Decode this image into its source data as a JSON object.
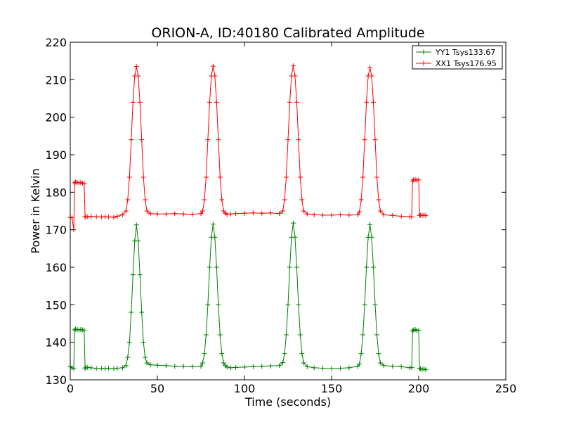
{
  "chart_data": {
    "type": "line",
    "title": "ORION-A, ID:40180 Calibrated Amplitude",
    "xlabel": "Time (seconds)",
    "ylabel": "Power in Kelvin",
    "xlim": [
      0,
      250
    ],
    "ylim": [
      130,
      220
    ],
    "xticks": [
      "0",
      "50",
      "100",
      "150",
      "200",
      "250"
    ],
    "yticks": [
      "130",
      "140",
      "150",
      "160",
      "170",
      "180",
      "190",
      "200",
      "210",
      "220"
    ],
    "grid": false,
    "legend_position": "top-right",
    "series": [
      {
        "name": "YY1 Tsys133.67",
        "color": "#008000",
        "marker": "+",
        "x": [
          0,
          1,
          2,
          2.5,
          3,
          4,
          5,
          6,
          7,
          8,
          8.5,
          9,
          10,
          12,
          15,
          18,
          20,
          22,
          25,
          27,
          30,
          32,
          33,
          34,
          35,
          36,
          37,
          38,
          39,
          40,
          41,
          42,
          43,
          44,
          46,
          50,
          55,
          60,
          65,
          70,
          75,
          76,
          77,
          78,
          79,
          80,
          81,
          82,
          83,
          84,
          85,
          86,
          87,
          88,
          89,
          90,
          92,
          95,
          100,
          105,
          110,
          115,
          120,
          122,
          123,
          124,
          125,
          126,
          127,
          128,
          129,
          130,
          131,
          132,
          133,
          134,
          136,
          140,
          145,
          150,
          155,
          160,
          165,
          166,
          167,
          168,
          169,
          170,
          171,
          172,
          173,
          174,
          175,
          176,
          177,
          178,
          180,
          185,
          190,
          195,
          196,
          196.5,
          197,
          198,
          199,
          200,
          200.5,
          201,
          202,
          203,
          204
        ],
        "values": [
          133.5,
          133.2,
          133.0,
          143.3,
          143.5,
          143.4,
          143.3,
          143.4,
          143.3,
          143.2,
          133.0,
          133.3,
          133.3,
          133.2,
          133.0,
          133.1,
          133.0,
          133.1,
          133.0,
          133.1,
          133.2,
          133.8,
          136,
          140,
          148,
          158,
          167,
          171.3,
          167,
          158,
          148,
          140,
          136,
          134.5,
          134.0,
          133.9,
          133.8,
          133.6,
          133.6,
          133.5,
          133.6,
          134.5,
          137,
          142,
          150,
          160,
          168,
          171.5,
          168,
          160,
          150,
          142,
          137,
          134.5,
          133.8,
          133.4,
          133.2,
          133.3,
          133.4,
          133.5,
          133.6,
          133.7,
          133.8,
          134.6,
          137,
          142,
          150,
          160,
          168,
          171.8,
          168,
          160,
          150,
          142,
          137,
          134.5,
          133.5,
          133.2,
          133.1,
          133.0,
          133.1,
          133.2,
          133.6,
          134.2,
          137,
          142,
          150,
          160,
          168,
          171.4,
          168,
          160,
          150,
          142,
          137,
          134.5,
          133.8,
          133.6,
          133.5,
          133.2,
          133.3,
          143.0,
          143.3,
          143.4,
          143.1,
          143.2,
          133.0,
          132.9,
          132.8,
          132.9,
          132.7
        ]
      },
      {
        "name": "XX1 Tsys176.95",
        "color": "#ff0000",
        "marker": "+",
        "x": [
          0,
          1,
          2,
          2.5,
          3,
          4,
          5,
          6,
          7,
          8,
          8.5,
          9,
          10,
          12,
          15,
          18,
          20,
          22,
          25,
          27,
          30,
          32,
          33,
          34,
          35,
          36,
          37,
          38,
          39,
          40,
          41,
          42,
          43,
          44,
          46,
          50,
          55,
          60,
          65,
          70,
          75,
          76,
          77,
          78,
          79,
          80,
          81,
          82,
          83,
          84,
          85,
          86,
          87,
          88,
          89,
          90,
          92,
          95,
          100,
          105,
          110,
          115,
          120,
          122,
          123,
          124,
          125,
          126,
          127,
          128,
          129,
          130,
          131,
          132,
          133,
          134,
          136,
          140,
          145,
          150,
          155,
          160,
          165,
          166,
          167,
          168,
          169,
          170,
          171,
          172,
          173,
          174,
          175,
          176,
          177,
          178,
          180,
          185,
          190,
          195,
          196,
          196.5,
          197,
          198,
          199,
          200,
          200.5,
          201,
          202,
          203,
          204
        ],
        "values": [
          173.3,
          173.2,
          170.0,
          182.5,
          182.7,
          182.6,
          182.5,
          182.6,
          182.4,
          182.3,
          173.5,
          173.4,
          173.5,
          173.6,
          173.5,
          173.4,
          173.5,
          173.4,
          173.3,
          173.6,
          174.0,
          175.0,
          178,
          184,
          194,
          204,
          211,
          213.5,
          211,
          204,
          194,
          184,
          178,
          175,
          174.3,
          174.2,
          174.2,
          174.3,
          174.2,
          174.1,
          174.3,
          175.0,
          178,
          184,
          194,
          204,
          211,
          213.6,
          211,
          204,
          194,
          184,
          178,
          175,
          174.4,
          174.1,
          174.2,
          174.3,
          174.4,
          174.5,
          174.4,
          174.5,
          174.3,
          175.0,
          178,
          184,
          194,
          204,
          211,
          213.7,
          211,
          204,
          194,
          184,
          178,
          175,
          174.2,
          174.0,
          173.9,
          173.9,
          174.0,
          173.9,
          174.0,
          174.8,
          178,
          184,
          194,
          204,
          211,
          213.2,
          211,
          204,
          194,
          184,
          178,
          175,
          174.0,
          173.8,
          173.6,
          173.5,
          173.4,
          183.0,
          183.3,
          183.4,
          183.2,
          183.3,
          173.8,
          173.9,
          173.8,
          173.9,
          173.8
        ]
      }
    ]
  }
}
